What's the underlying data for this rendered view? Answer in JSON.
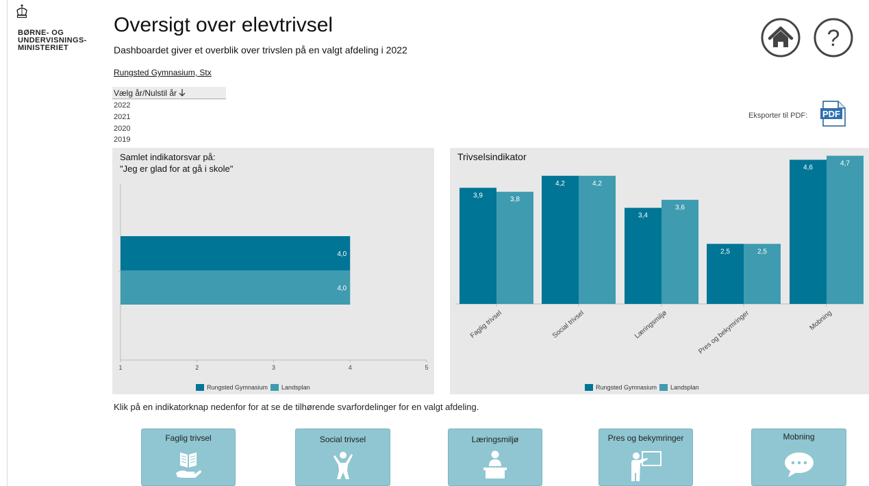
{
  "ministry": {
    "logo_lines": [
      "BØRNE- OG",
      "UNDERVISNINGS-",
      "MINISTERIET"
    ]
  },
  "header": {
    "title": "Oversigt over elevtrivsel",
    "subtitle": "Dashboardet giver et overblik over trivslen på en valgt afdeling i 2022",
    "school_link": "Rungsted Gymnasium, Stx"
  },
  "year_filter": {
    "header": "Vælg år/Nulstil år",
    "years": [
      "2022",
      "2021",
      "2020",
      "2019"
    ]
  },
  "export": {
    "label": "Eksporter til PDF:",
    "icon_text": "PDF"
  },
  "icons": {
    "home": "home-icon",
    "help": "help-icon",
    "help_glyph": "?"
  },
  "colors": {
    "series_primary": "#007596",
    "series_secondary": "#3e9bb0",
    "panel_bg": "#e8e8e8",
    "button_bg": "#8fc6d1"
  },
  "instruction": "Klik på en indikatorknap nedenfor for at se de tilhørende svarfordelinger for en valgt afdeling.",
  "indicator_buttons": [
    {
      "label": "Faglig trivsel",
      "icon": "book-in-hand-icon"
    },
    {
      "label": "Social trivsel",
      "icon": "cheering-person-icon"
    },
    {
      "label": "Læringsmiljø",
      "icon": "person-at-desk-icon"
    },
    {
      "label": "Pres og bekymringer",
      "icon": "teacher-at-board-icon"
    },
    {
      "label": "Mobning",
      "icon": "speech-bubble-icon"
    }
  ],
  "chart_data": [
    {
      "type": "bar",
      "orientation": "horizontal",
      "title_lines": [
        "Samlet indikatorsvar på:",
        "\"Jeg er glad for at gå i skole\""
      ],
      "xlim": [
        1,
        5
      ],
      "x_ticks": [
        "1",
        "2",
        "3",
        "4",
        "5"
      ],
      "series": [
        {
          "name": "Rungsted Gymnasium",
          "values": [
            4.0
          ],
          "labels": [
            "4,0"
          ],
          "color": "#007596"
        },
        {
          "name": "Landsplan",
          "values": [
            4.0
          ],
          "labels": [
            "4,0"
          ],
          "color": "#3e9bb0"
        }
      ],
      "legend_position": "bottom-center",
      "grid": false
    },
    {
      "type": "bar",
      "title": "Trivselsindikator",
      "categories": [
        "Faglig trivsel",
        "Social trivsel",
        "Læringsmiljø",
        "Pres og bekymringer",
        "Mobning"
      ],
      "ylim": [
        1,
        5
      ],
      "series": [
        {
          "name": "Rungsted Gymnasium",
          "values": [
            3.9,
            4.2,
            3.4,
            2.5,
            4.6
          ],
          "labels": [
            "3,9",
            "4,2",
            "3,4",
            "2,5",
            "4,6"
          ],
          "color": "#007596"
        },
        {
          "name": "Landsplan",
          "values": [
            3.8,
            4.2,
            3.6,
            2.5,
            4.7
          ],
          "labels": [
            "3,8",
            "4,2",
            "3,6",
            "2,5",
            "4,7"
          ],
          "color": "#3e9bb0"
        }
      ],
      "legend_position": "bottom-center",
      "grid": false
    }
  ]
}
